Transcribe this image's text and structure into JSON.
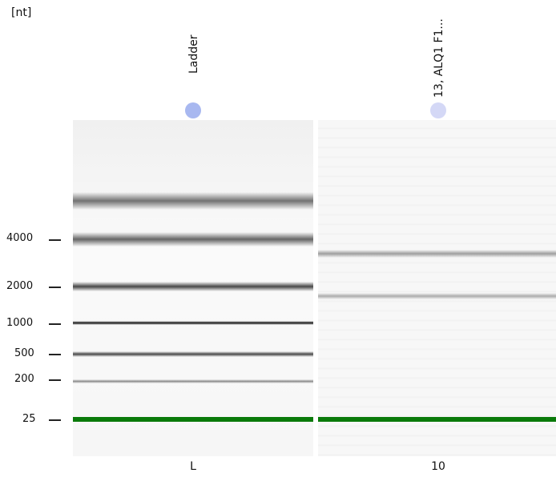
{
  "unit_label": "[nt]",
  "lanes": [
    {
      "name": "Ladder",
      "id": "L",
      "dot_color": "#a8b8f0"
    },
    {
      "name": "13, ALQ1 F1...",
      "id": "10",
      "dot_color": "#d4d8f6"
    }
  ],
  "ladder_ticks": [
    "4000",
    "2000",
    "1000",
    "500",
    "200",
    "25"
  ],
  "marker_color": "#0a7a0a"
}
